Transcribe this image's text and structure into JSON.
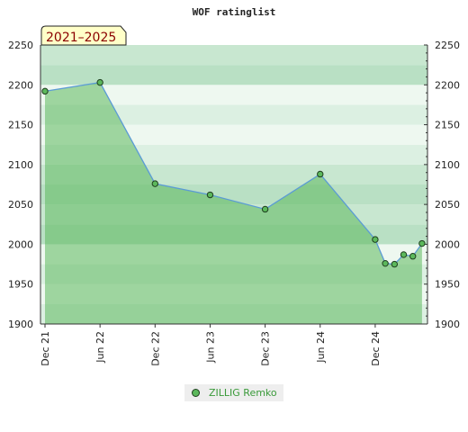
{
  "chart_data": {
    "type": "area",
    "title": "WOF ratinglist",
    "period_badge": "2021–2025",
    "ylim": [
      1900,
      2250
    ],
    "yticks": [
      "1900",
      "1950",
      "2000",
      "2050",
      "2100",
      "2150",
      "2200",
      "2250"
    ],
    "xticks": [
      {
        "label": "Dec 21",
        "month": 0
      },
      {
        "label": "Jun 22",
        "month": 6
      },
      {
        "label": "Dec 22",
        "month": 12
      },
      {
        "label": "Jun 23",
        "month": 18
      },
      {
        "label": "Dec 23",
        "month": 24
      },
      {
        "label": "Jun 24",
        "month": 30
      },
      {
        "label": "Dec 24",
        "month": 36
      }
    ],
    "xlim_months": [
      0,
      41.7
    ],
    "series": [
      {
        "name": "ZILLIG Remko",
        "points": [
          {
            "month": 0.0,
            "value": 2192
          },
          {
            "month": 6.0,
            "value": 2203
          },
          {
            "month": 12.0,
            "value": 2076
          },
          {
            "month": 18.0,
            "value": 2062
          },
          {
            "month": 24.0,
            "value": 2044
          },
          {
            "month": 30.0,
            "value": 2088
          },
          {
            "month": 36.0,
            "value": 2006
          },
          {
            "month": 37.1,
            "value": 1976
          },
          {
            "month": 38.1,
            "value": 1975
          },
          {
            "month": 39.1,
            "value": 1987
          },
          {
            "month": 40.1,
            "value": 1985
          },
          {
            "month": 41.1,
            "value": 2001
          }
        ]
      }
    ],
    "colors": {
      "area_fill": "#5cb85c",
      "line": "#5b9bd5",
      "marker": "#5cb85c",
      "marker_stroke": "#1f3f1f",
      "band_dark": "#b3dcbf",
      "band_light": "#eef8f0",
      "badge_bg": "#ffffc8"
    }
  },
  "legend": {
    "label": "ZILLIG Remko"
  }
}
